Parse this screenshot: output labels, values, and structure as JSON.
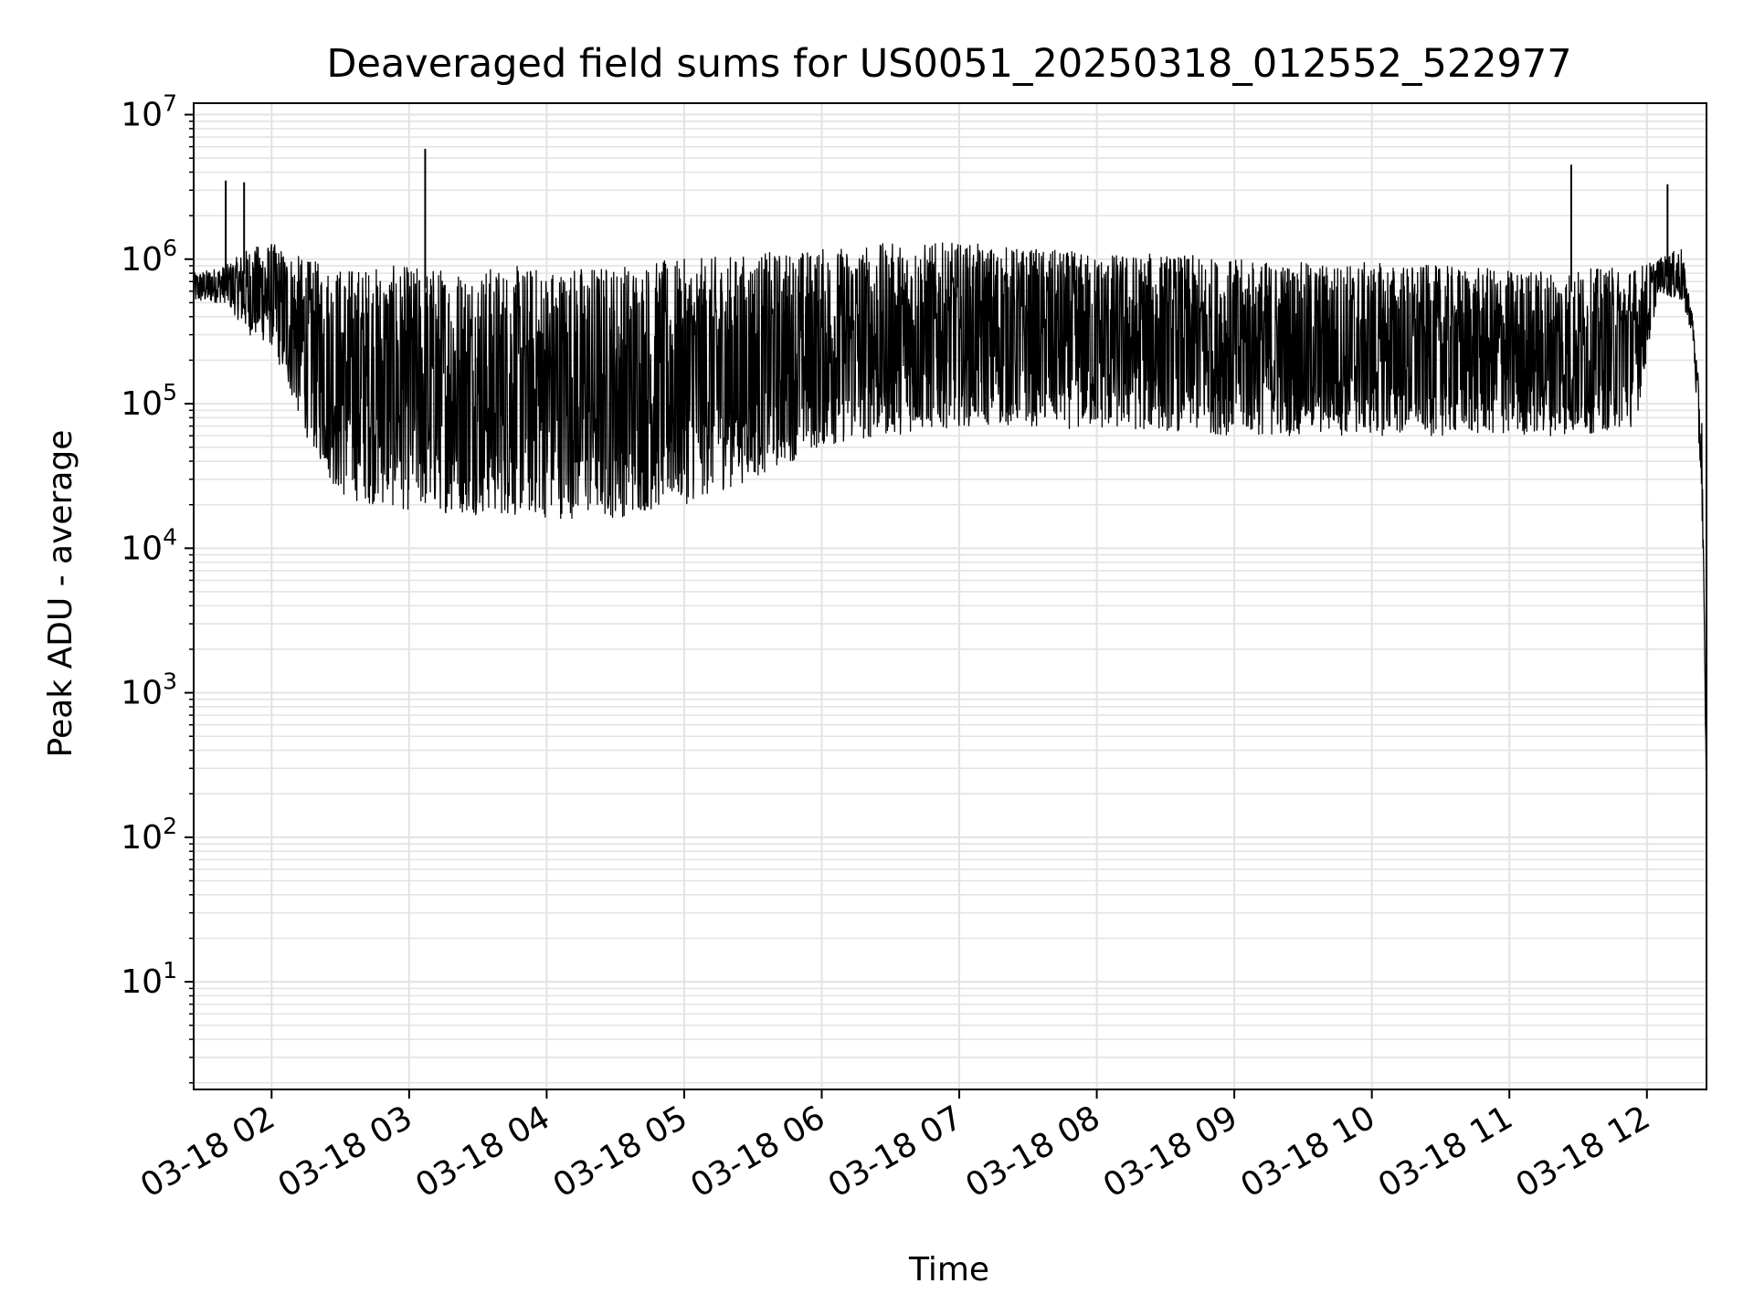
{
  "chart_data": {
    "type": "line",
    "title": "Deaveraged field sums for US0051_20250318_012552_522977",
    "xlabel": "Time",
    "ylabel": "Peak ADU - average",
    "yscale": "log",
    "ylim": [
      1.8,
      12000000
    ],
    "xlim": [
      "2025-03-18T01:26",
      "2025-03-18T12:26"
    ],
    "x_ticks": [
      "2025-03-18T02:00",
      "2025-03-18T03:00",
      "2025-03-18T04:00",
      "2025-03-18T05:00",
      "2025-03-18T06:00",
      "2025-03-18T07:00",
      "2025-03-18T08:00",
      "2025-03-18T09:00",
      "2025-03-18T10:00",
      "2025-03-18T11:00",
      "2025-03-18T12:00"
    ],
    "x_tick_labels": [
      "03-18 02",
      "03-18 03",
      "03-18 04",
      "03-18 05",
      "03-18 06",
      "03-18 07",
      "03-18 08",
      "03-18 09",
      "03-18 10",
      "03-18 11",
      "03-18 12"
    ],
    "y_ticks": [
      10,
      100,
      1000,
      10000,
      100000,
      1000000,
      10000000
    ],
    "y_tick_labels": [
      {
        "base": "10",
        "exp": "1"
      },
      {
        "base": "10",
        "exp": "2"
      },
      {
        "base": "10",
        "exp": "3"
      },
      {
        "base": "10",
        "exp": "4"
      },
      {
        "base": "10",
        "exp": "5"
      },
      {
        "base": "10",
        "exp": "6"
      },
      {
        "base": "10",
        "exp": "7"
      }
    ],
    "grid": true,
    "line_color": "#000000",
    "series": [
      {
        "description": "dense noisy line; envelope: upper and lower bounds of the oscillation",
        "x": [
          "2025-03-18T01:26",
          "2025-03-18T01:40",
          "2025-03-18T01:50",
          "2025-03-18T02:00",
          "2025-03-18T02:15",
          "2025-03-18T02:30",
          "2025-03-18T03:00",
          "2025-03-18T03:30",
          "2025-03-18T04:00",
          "2025-03-18T04:30",
          "2025-03-18T05:00",
          "2025-03-18T05:30",
          "2025-03-18T06:00",
          "2025-03-18T06:30",
          "2025-03-18T07:00",
          "2025-03-18T07:30",
          "2025-03-18T08:00",
          "2025-03-18T08:30",
          "2025-03-18T09:00",
          "2025-03-18T09:30",
          "2025-03-18T10:00",
          "2025-03-18T10:30",
          "2025-03-18T11:00",
          "2025-03-18T11:30",
          "2025-03-18T11:55",
          "2025-03-18T12:05",
          "2025-03-18T12:15",
          "2025-03-18T12:20",
          "2025-03-18T12:24",
          "2025-03-18T12:26"
        ],
        "upper": [
          800000,
          900000,
          1200000,
          1300000,
          1000000,
          900000,
          900000,
          900000,
          900000,
          950000,
          1000000,
          1100000,
          1200000,
          1300000,
          1300000,
          1200000,
          1100000,
          1100000,
          1000000,
          950000,
          950000,
          900000,
          850000,
          850000,
          900000,
          1000000,
          1200000,
          400000,
          80000,
          200
        ],
        "lower": [
          500000,
          500000,
          300000,
          250000,
          60000,
          22000,
          18000,
          17000,
          16000,
          16000,
          20000,
          30000,
          50000,
          60000,
          70000,
          70000,
          65000,
          65000,
          60000,
          60000,
          60000,
          60000,
          60000,
          60000,
          70000,
          600000,
          500000,
          300000,
          20000,
          200
        ]
      }
    ],
    "spikes": [
      {
        "x": "2025-03-18T01:40",
        "y": 3500000
      },
      {
        "x": "2025-03-18T01:48",
        "y": 3400000
      },
      {
        "x": "2025-03-18T03:07",
        "y": 5800000
      },
      {
        "x": "2025-03-18T11:27",
        "y": 4500000
      },
      {
        "x": "2025-03-18T12:09",
        "y": 3300000
      }
    ]
  }
}
